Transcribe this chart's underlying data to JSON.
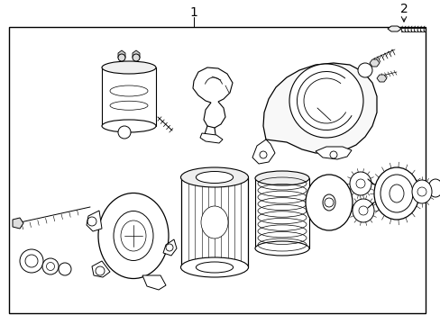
{
  "background_color": "#ffffff",
  "line_color": "#000000",
  "label_1": "1",
  "label_2": "2",
  "figsize": [
    4.89,
    3.6
  ],
  "dpi": 100
}
